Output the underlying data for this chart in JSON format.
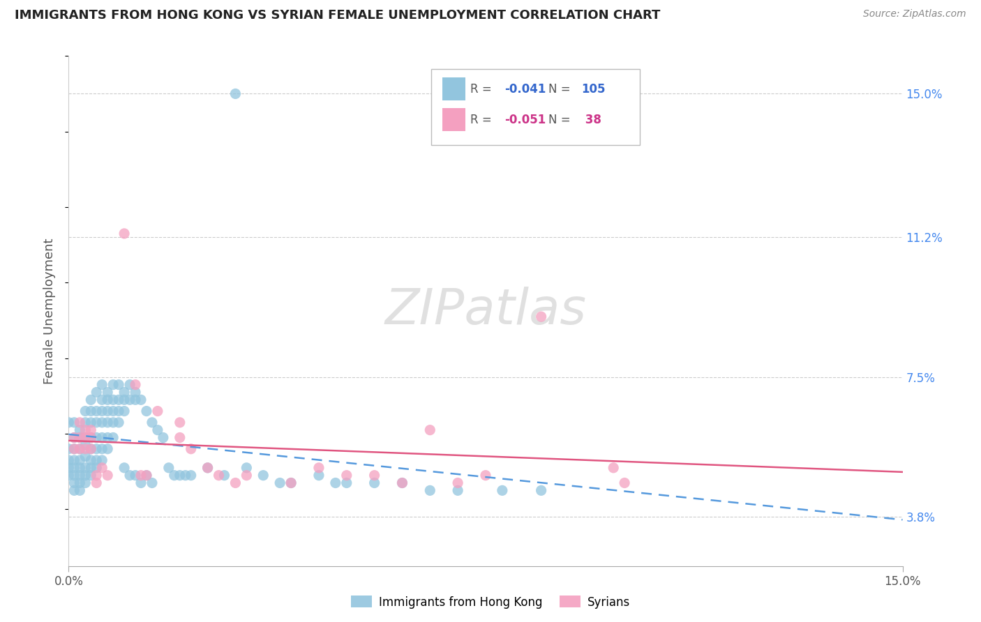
{
  "title": "IMMIGRANTS FROM HONG KONG VS SYRIAN FEMALE UNEMPLOYMENT CORRELATION CHART",
  "source_text": "Source: ZipAtlas.com",
  "ylabel": "Female Unemployment",
  "xlim": [
    0.0,
    0.15
  ],
  "ylim": [
    0.025,
    0.16
  ],
  "right_yticks": [
    0.038,
    0.075,
    0.112,
    0.15
  ],
  "right_yticklabels": [
    "3.8%",
    "7.5%",
    "11.2%",
    "15.0%"
  ],
  "color_hk": "#92c5de",
  "color_sy": "#f4a0c0",
  "color_line_hk": "#5599dd",
  "color_line_sy": "#e05580",
  "watermark_text": "ZIPatlas",
  "legend_r1_label": "R = ",
  "legend_r1_val": "-0.041",
  "legend_n1_label": "N = ",
  "legend_n1_val": "105",
  "legend_r2_label": "R = ",
  "legend_r2_val": "-0.051",
  "legend_n2_label": "N = ",
  "legend_n2_val": " 38",
  "hk_points": [
    [
      0.0,
      0.063
    ],
    [
      0.0,
      0.056
    ],
    [
      0.0,
      0.053
    ],
    [
      0.0,
      0.051
    ],
    [
      0.0,
      0.049
    ],
    [
      0.001,
      0.063
    ],
    [
      0.001,
      0.059
    ],
    [
      0.001,
      0.056
    ],
    [
      0.001,
      0.053
    ],
    [
      0.001,
      0.051
    ],
    [
      0.001,
      0.049
    ],
    [
      0.001,
      0.047
    ],
    [
      0.001,
      0.045
    ],
    [
      0.002,
      0.061
    ],
    [
      0.002,
      0.059
    ],
    [
      0.002,
      0.056
    ],
    [
      0.002,
      0.053
    ],
    [
      0.002,
      0.051
    ],
    [
      0.002,
      0.049
    ],
    [
      0.002,
      0.047
    ],
    [
      0.002,
      0.045
    ],
    [
      0.003,
      0.066
    ],
    [
      0.003,
      0.063
    ],
    [
      0.003,
      0.059
    ],
    [
      0.003,
      0.057
    ],
    [
      0.003,
      0.054
    ],
    [
      0.003,
      0.051
    ],
    [
      0.003,
      0.049
    ],
    [
      0.003,
      0.047
    ],
    [
      0.004,
      0.069
    ],
    [
      0.004,
      0.066
    ],
    [
      0.004,
      0.063
    ],
    [
      0.004,
      0.059
    ],
    [
      0.004,
      0.056
    ],
    [
      0.004,
      0.053
    ],
    [
      0.004,
      0.051
    ],
    [
      0.004,
      0.049
    ],
    [
      0.005,
      0.071
    ],
    [
      0.005,
      0.066
    ],
    [
      0.005,
      0.063
    ],
    [
      0.005,
      0.059
    ],
    [
      0.005,
      0.056
    ],
    [
      0.005,
      0.053
    ],
    [
      0.005,
      0.051
    ],
    [
      0.006,
      0.073
    ],
    [
      0.006,
      0.069
    ],
    [
      0.006,
      0.066
    ],
    [
      0.006,
      0.063
    ],
    [
      0.006,
      0.059
    ],
    [
      0.006,
      0.056
    ],
    [
      0.006,
      0.053
    ],
    [
      0.007,
      0.071
    ],
    [
      0.007,
      0.069
    ],
    [
      0.007,
      0.066
    ],
    [
      0.007,
      0.063
    ],
    [
      0.007,
      0.059
    ],
    [
      0.007,
      0.056
    ],
    [
      0.008,
      0.073
    ],
    [
      0.008,
      0.069
    ],
    [
      0.008,
      0.066
    ],
    [
      0.008,
      0.063
    ],
    [
      0.008,
      0.059
    ],
    [
      0.009,
      0.073
    ],
    [
      0.009,
      0.069
    ],
    [
      0.009,
      0.066
    ],
    [
      0.009,
      0.063
    ],
    [
      0.01,
      0.071
    ],
    [
      0.01,
      0.069
    ],
    [
      0.01,
      0.066
    ],
    [
      0.01,
      0.051
    ],
    [
      0.011,
      0.073
    ],
    [
      0.011,
      0.069
    ],
    [
      0.011,
      0.049
    ],
    [
      0.012,
      0.071
    ],
    [
      0.012,
      0.069
    ],
    [
      0.012,
      0.049
    ],
    [
      0.013,
      0.069
    ],
    [
      0.013,
      0.047
    ],
    [
      0.014,
      0.066
    ],
    [
      0.014,
      0.049
    ],
    [
      0.015,
      0.063
    ],
    [
      0.015,
      0.047
    ],
    [
      0.016,
      0.061
    ],
    [
      0.017,
      0.059
    ],
    [
      0.018,
      0.051
    ],
    [
      0.019,
      0.049
    ],
    [
      0.02,
      0.049
    ],
    [
      0.021,
      0.049
    ],
    [
      0.022,
      0.049
    ],
    [
      0.025,
      0.051
    ],
    [
      0.028,
      0.049
    ],
    [
      0.03,
      0.15
    ],
    [
      0.032,
      0.051
    ],
    [
      0.035,
      0.049
    ],
    [
      0.038,
      0.047
    ],
    [
      0.04,
      0.047
    ],
    [
      0.045,
      0.049
    ],
    [
      0.048,
      0.047
    ],
    [
      0.05,
      0.047
    ],
    [
      0.055,
      0.047
    ],
    [
      0.06,
      0.047
    ],
    [
      0.065,
      0.045
    ],
    [
      0.07,
      0.045
    ],
    [
      0.078,
      0.045
    ],
    [
      0.085,
      0.045
    ]
  ],
  "sy_points": [
    [
      0.001,
      0.059
    ],
    [
      0.001,
      0.056
    ],
    [
      0.002,
      0.063
    ],
    [
      0.002,
      0.059
    ],
    [
      0.002,
      0.056
    ],
    [
      0.003,
      0.061
    ],
    [
      0.003,
      0.059
    ],
    [
      0.003,
      0.056
    ],
    [
      0.004,
      0.061
    ],
    [
      0.004,
      0.059
    ],
    [
      0.004,
      0.056
    ],
    [
      0.005,
      0.049
    ],
    [
      0.005,
      0.047
    ],
    [
      0.006,
      0.051
    ],
    [
      0.007,
      0.049
    ],
    [
      0.01,
      0.113
    ],
    [
      0.012,
      0.073
    ],
    [
      0.013,
      0.049
    ],
    [
      0.014,
      0.049
    ],
    [
      0.016,
      0.066
    ],
    [
      0.02,
      0.063
    ],
    [
      0.02,
      0.059
    ],
    [
      0.022,
      0.056
    ],
    [
      0.025,
      0.051
    ],
    [
      0.027,
      0.049
    ],
    [
      0.03,
      0.047
    ],
    [
      0.032,
      0.049
    ],
    [
      0.04,
      0.047
    ],
    [
      0.045,
      0.051
    ],
    [
      0.05,
      0.049
    ],
    [
      0.055,
      0.049
    ],
    [
      0.06,
      0.047
    ],
    [
      0.065,
      0.061
    ],
    [
      0.07,
      0.047
    ],
    [
      0.075,
      0.049
    ],
    [
      0.085,
      0.091
    ],
    [
      0.098,
      0.051
    ],
    [
      0.1,
      0.047
    ]
  ]
}
